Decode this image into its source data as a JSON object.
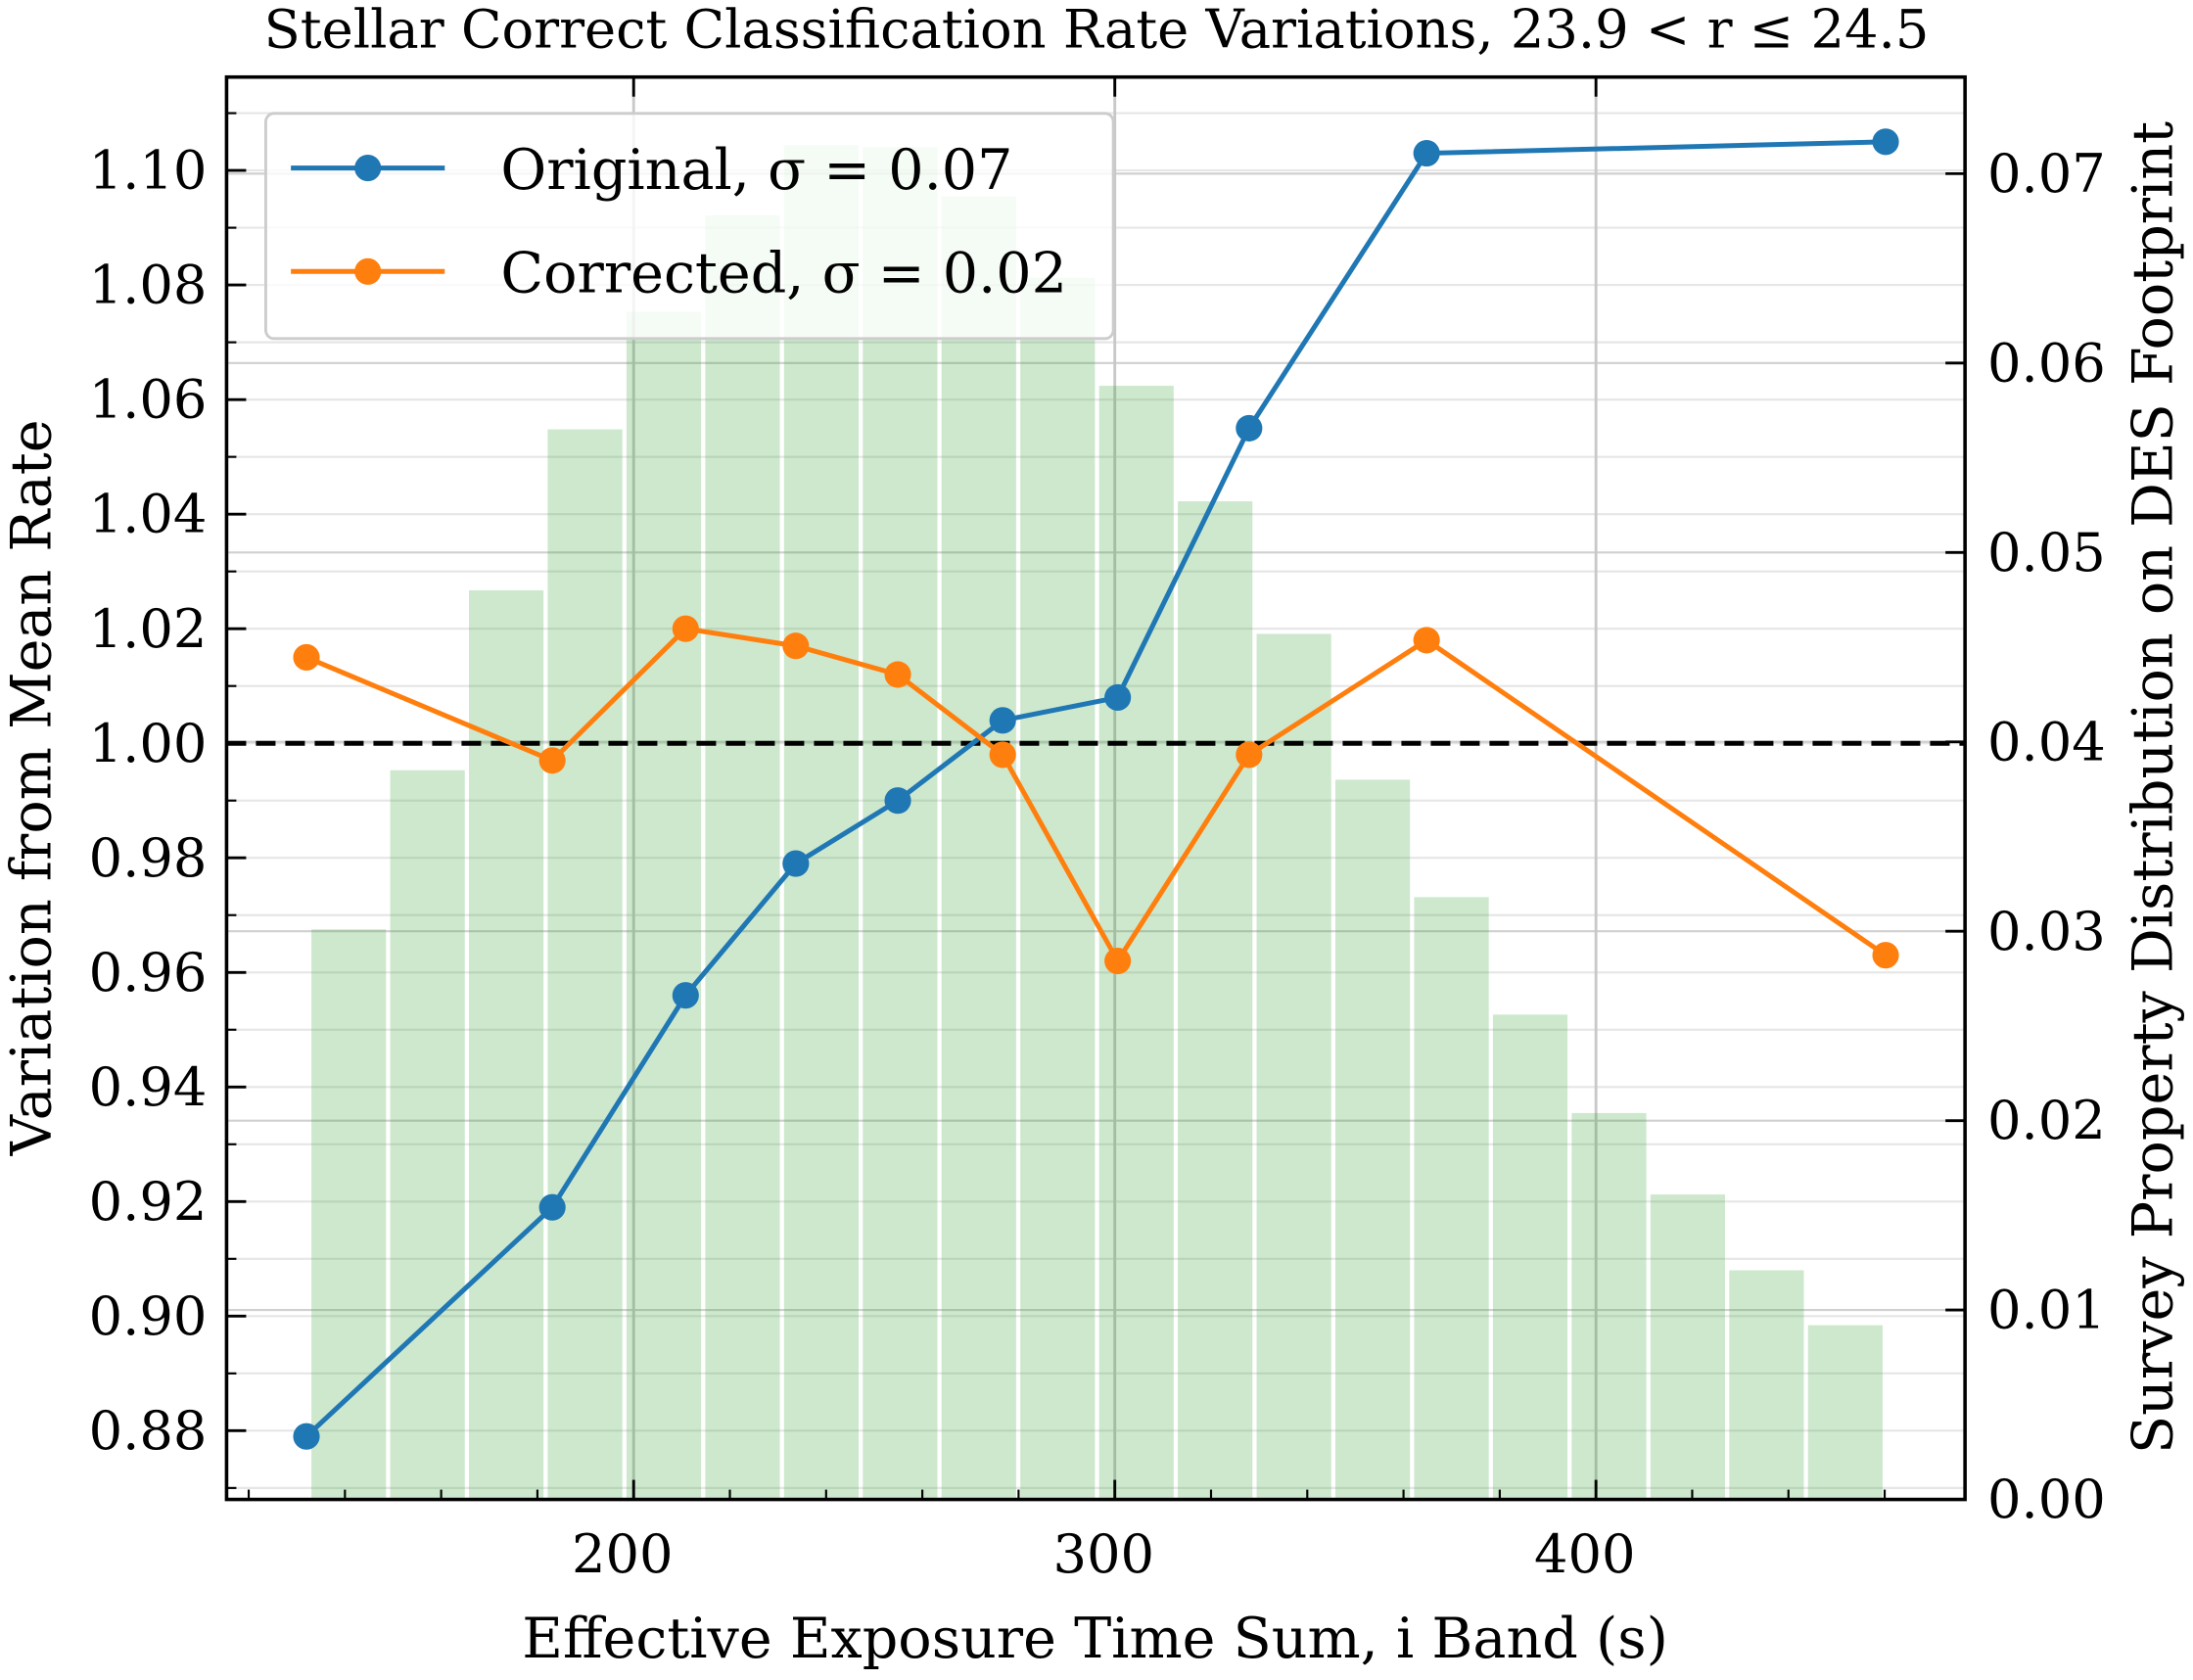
{
  "chart_data": {
    "type": "line",
    "title": "Stellar Correct Classification Rate Variations, 23.9 < r ≤ 24.5",
    "xlabel": "Effective Exposure Time Sum, i Band (s)",
    "ylabel": "Variation from Mean Rate",
    "y2label": "Survey Property Distribution on DES Footprint",
    "xlim": [
      115.4,
      476.7
    ],
    "ylim": [
      0.868,
      1.1163
    ],
    "y2lim": [
      0.0,
      0.0751
    ],
    "xticks": [
      200,
      300,
      400
    ],
    "xtick_labels": [
      "200",
      "300",
      "400"
    ],
    "yticks": [
      0.88,
      0.9,
      0.92,
      0.94,
      0.96,
      0.98,
      1.0,
      1.02,
      1.04,
      1.06,
      1.08,
      1.1
    ],
    "ytick_labels": [
      "0.88",
      "0.90",
      "0.92",
      "0.94",
      "0.96",
      "0.98",
      "1.00",
      "1.02",
      "1.04",
      "1.06",
      "1.08",
      "1.10"
    ],
    "y2ticks": [
      0.0,
      0.01,
      0.02,
      0.03,
      0.04,
      0.05,
      0.06,
      0.07
    ],
    "y2tick_labels": [
      "0.00",
      "0.01",
      "0.02",
      "0.03",
      "0.04",
      "0.05",
      "0.06",
      "0.07"
    ],
    "reference_line": 1.0,
    "grid": true,
    "legend_position": "top-left",
    "series": [
      {
        "name": "Original, σ = 0.07",
        "color": "#1f77b4",
        "x": [
          132.0,
          183.1,
          210.8,
          233.7,
          254.9,
          276.7,
          300.6,
          327.9,
          364.8,
          460.2
        ],
        "y": [
          0.879,
          0.919,
          0.956,
          0.979,
          0.99,
          1.004,
          1.008,
          1.055,
          1.103,
          1.105
        ]
      },
      {
        "name": "Corrected, σ = 0.02",
        "color": "#ff7f0e",
        "x": [
          132.0,
          183.1,
          210.8,
          233.7,
          254.9,
          276.7,
          300.6,
          327.9,
          364.8,
          460.2
        ],
        "y": [
          1.015,
          0.997,
          1.02,
          1.017,
          1.012,
          0.998,
          0.962,
          0.998,
          1.018,
          0.963
        ]
      }
    ],
    "histogram": {
      "color": "#2ca02c",
      "bin_start": 132.6,
      "bin_width": 16.37,
      "values": [
        0.0301,
        0.0385,
        0.048,
        0.0565,
        0.0627,
        0.0678,
        0.0715,
        0.0714,
        0.0688,
        0.0645,
        0.0588,
        0.0527,
        0.0457,
        0.038,
        0.0318,
        0.0256,
        0.0204,
        0.0161,
        0.0121,
        0.0092
      ]
    }
  }
}
